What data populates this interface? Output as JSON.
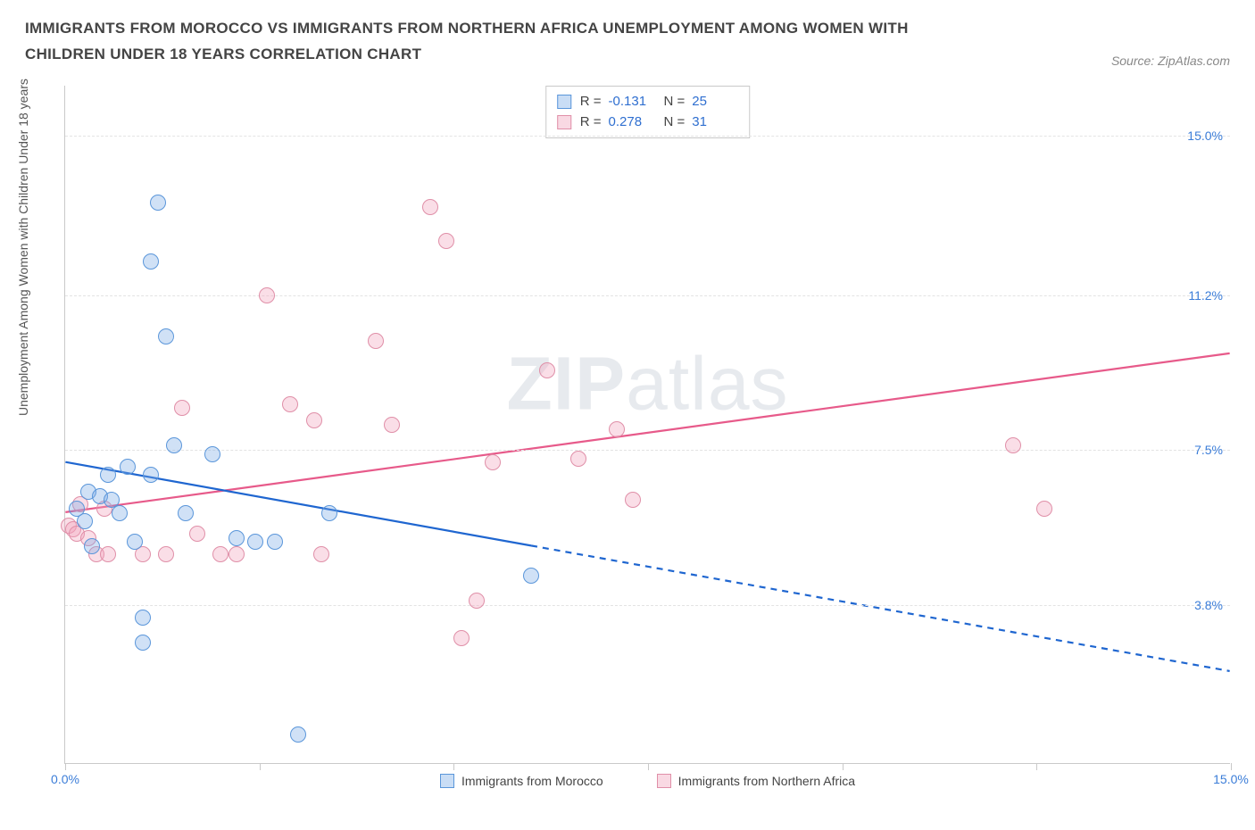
{
  "header": {
    "title": "IMMIGRANTS FROM MOROCCO VS IMMIGRANTS FROM NORTHERN AFRICA UNEMPLOYMENT AMONG WOMEN WITH CHILDREN UNDER 18 YEARS CORRELATION CHART",
    "source": "Source: ZipAtlas.com"
  },
  "watermark": {
    "left": "ZIP",
    "right": "atlas"
  },
  "chart": {
    "type": "scatter",
    "yaxis_title": "Unemployment Among Women with Children Under 18 years",
    "xlim": [
      0,
      15
    ],
    "ylim": [
      0,
      16.2
    ],
    "xticks": [
      0,
      2.5,
      5.0,
      7.5,
      10.0,
      12.5,
      15.0
    ],
    "yticks": [
      {
        "v": 3.8,
        "label": "3.8%"
      },
      {
        "v": 7.5,
        "label": "7.5%"
      },
      {
        "v": 11.2,
        "label": "11.2%"
      },
      {
        "v": 15.0,
        "label": "15.0%"
      }
    ],
    "xlabels": [
      {
        "v": 0,
        "label": "0.0%"
      },
      {
        "v": 15,
        "label": "15.0%"
      }
    ],
    "legend_stats": [
      {
        "color": "blue",
        "R": "-0.131",
        "N": "25"
      },
      {
        "color": "pink",
        "R": "0.278",
        "N": "31"
      }
    ],
    "bottom_legend": [
      {
        "color": "blue",
        "label": "Immigrants from Morocco"
      },
      {
        "color": "pink",
        "label": "Immigrants from Northern Africa"
      }
    ],
    "trend_lines": {
      "blue": {
        "solid": {
          "x1": 0,
          "y1": 7.2,
          "x2": 6.0,
          "y2": 5.2
        },
        "dashed": {
          "x1": 6.0,
          "y1": 5.2,
          "x2": 15.0,
          "y2": 2.2
        },
        "color": "#1f66d0",
        "width": 2.2
      },
      "pink": {
        "solid": {
          "x1": 0,
          "y1": 6.0,
          "x2": 15.0,
          "y2": 9.8
        },
        "color": "#e75a8a",
        "width": 2.2
      }
    },
    "colors": {
      "blue_fill": "rgba(120,170,230,0.35)",
      "blue_stroke": "#5a96da",
      "pink_fill": "rgba(240,160,185,0.35)",
      "pink_stroke": "#e08fa8",
      "grid": "#e3e3e3",
      "axis": "#c9c9c9",
      "tick_text": "#3b7dd8",
      "background": "#ffffff"
    },
    "marker_size": 18,
    "series": {
      "blue": [
        [
          0.15,
          6.1
        ],
        [
          0.25,
          5.8
        ],
        [
          0.3,
          6.5
        ],
        [
          0.35,
          5.2
        ],
        [
          0.45,
          6.4
        ],
        [
          0.55,
          6.9
        ],
        [
          0.7,
          6.0
        ],
        [
          0.8,
          7.1
        ],
        [
          0.9,
          5.3
        ],
        [
          1.0,
          3.5
        ],
        [
          1.0,
          2.9
        ],
        [
          1.1,
          6.9
        ],
        [
          1.1,
          12.0
        ],
        [
          1.2,
          13.4
        ],
        [
          1.3,
          10.2
        ],
        [
          1.4,
          7.6
        ],
        [
          1.55,
          6.0
        ],
        [
          1.9,
          7.4
        ],
        [
          2.2,
          5.4
        ],
        [
          2.45,
          5.3
        ],
        [
          2.7,
          5.3
        ],
        [
          3.0,
          0.7
        ],
        [
          3.4,
          6.0
        ],
        [
          6.0,
          4.5
        ],
        [
          0.6,
          6.3
        ]
      ],
      "pink": [
        [
          0.05,
          5.7
        ],
        [
          0.1,
          5.6
        ],
        [
          0.15,
          5.5
        ],
        [
          0.2,
          6.2
        ],
        [
          0.3,
          5.4
        ],
        [
          0.4,
          5.0
        ],
        [
          0.5,
          6.1
        ],
        [
          0.55,
          5.0
        ],
        [
          1.0,
          5.0
        ],
        [
          1.3,
          5.0
        ],
        [
          1.5,
          8.5
        ],
        [
          1.7,
          5.5
        ],
        [
          2.0,
          5.0
        ],
        [
          2.2,
          5.0
        ],
        [
          2.6,
          11.2
        ],
        [
          2.9,
          8.6
        ],
        [
          3.2,
          8.2
        ],
        [
          3.3,
          5.0
        ],
        [
          4.0,
          10.1
        ],
        [
          4.2,
          8.1
        ],
        [
          4.7,
          13.3
        ],
        [
          4.9,
          12.5
        ],
        [
          5.1,
          3.0
        ],
        [
          5.3,
          3.9
        ],
        [
          5.5,
          7.2
        ],
        [
          6.2,
          9.4
        ],
        [
          6.6,
          7.3
        ],
        [
          7.1,
          8.0
        ],
        [
          7.3,
          6.3
        ],
        [
          12.2,
          7.6
        ],
        [
          12.6,
          6.1
        ]
      ]
    }
  }
}
